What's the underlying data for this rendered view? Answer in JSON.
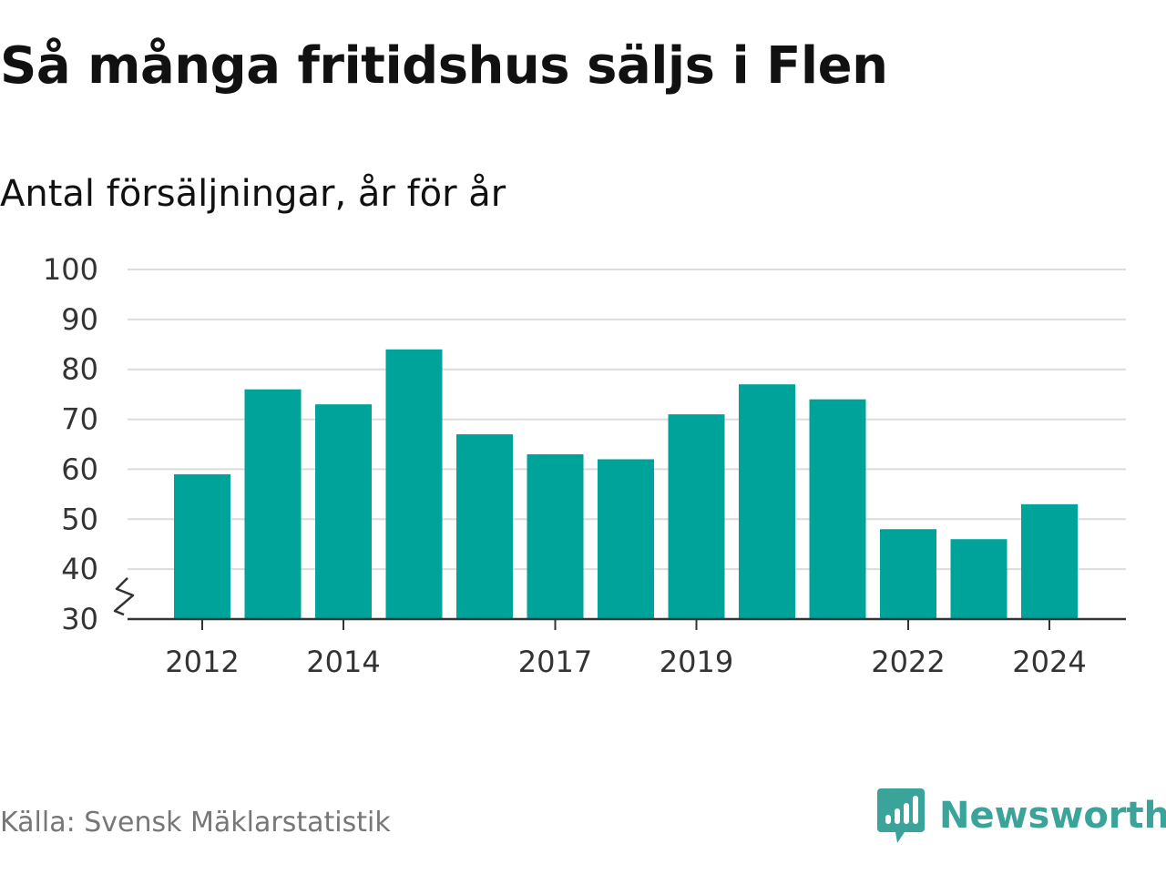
{
  "title": "Så många fritidshus säljs i Flen",
  "subtitle": "Antal försäljningar, år för år",
  "source": "Källa: Svensk Mäklarstatistik",
  "brand": {
    "name": "Newsworthy",
    "icon": "newsworthy-logo-icon",
    "color": "#3aa39a"
  },
  "colors": {
    "bar": "#00a39a",
    "grid": "#dcdcdc",
    "axis": "#333333",
    "text": "#333333"
  },
  "chart_data": {
    "type": "bar",
    "x": [
      2012,
      2013,
      2014,
      2015,
      2016,
      2017,
      2018,
      2019,
      2020,
      2021,
      2022,
      2023,
      2024
    ],
    "values": [
      59,
      76,
      73,
      84,
      67,
      63,
      62,
      71,
      77,
      74,
      48,
      46,
      53
    ],
    "x_tick_labels": [
      "2012",
      "2014",
      "2017",
      "2019",
      "2022",
      "2024"
    ],
    "y_ticks": [
      30,
      40,
      50,
      60,
      70,
      80,
      90,
      100
    ],
    "ylim": [
      30,
      100
    ],
    "y_axis_break": true,
    "grid": "horizontal"
  }
}
